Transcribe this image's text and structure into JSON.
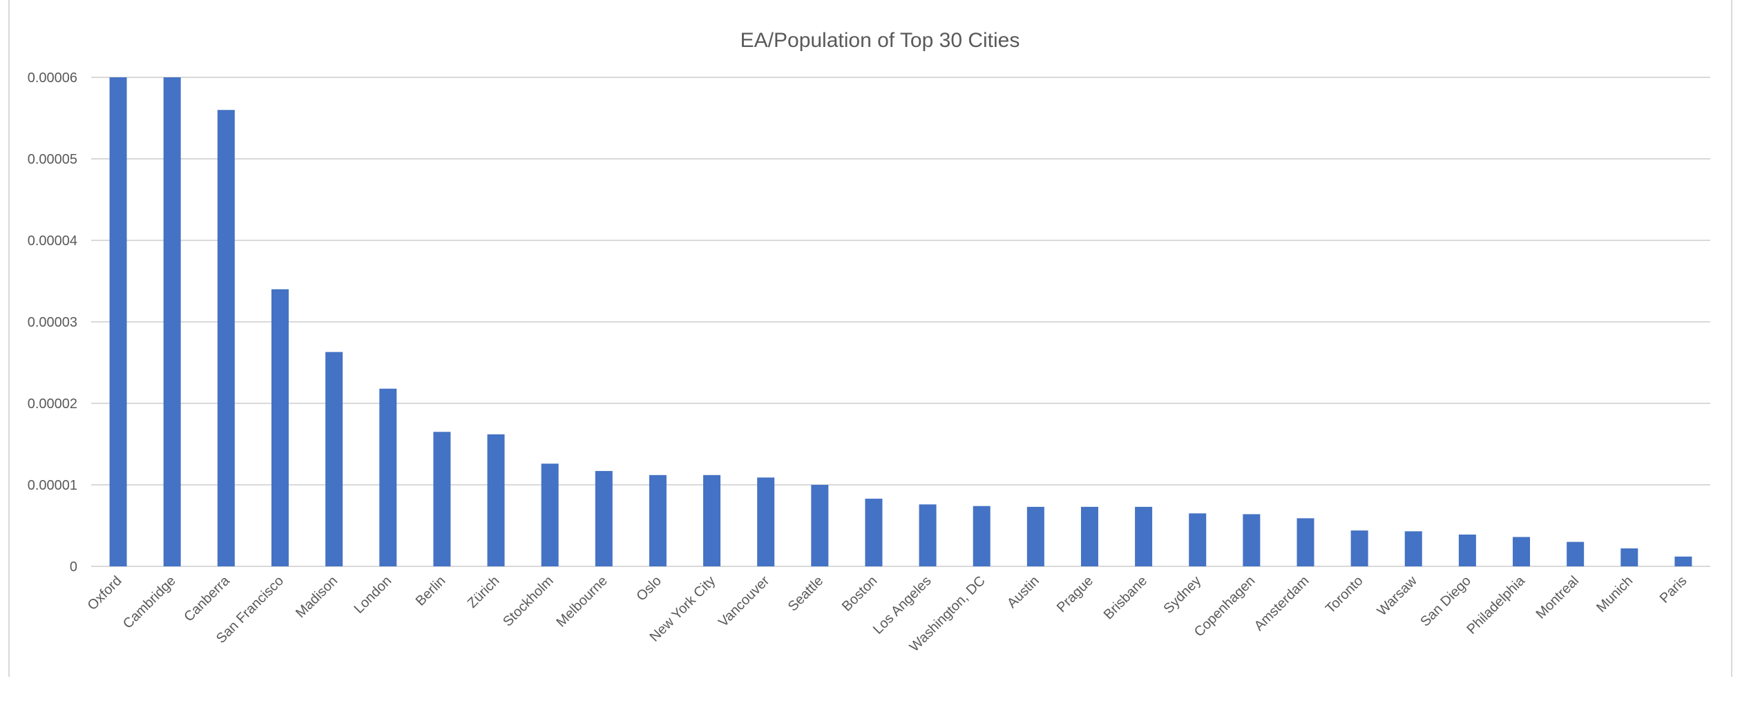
{
  "chart_data": {
    "type": "bar",
    "title": "EA/Population of Top 30 Cities",
    "xlabel": "",
    "ylabel": "",
    "ylim": [
      0,
      6e-05
    ],
    "yticks": [
      "0",
      "0.00001",
      "0.00002",
      "0.00003",
      "0.00004",
      "0.00005",
      "0.00006"
    ],
    "ytick_values": [
      0,
      1e-05,
      2e-05,
      3e-05,
      4e-05,
      5e-05,
      6e-05
    ],
    "grid": true,
    "color": "#4472c4",
    "categories": [
      "Oxford",
      "Cambridge",
      "Canberra",
      "San Francisco",
      "Madison",
      "London",
      "Berlin",
      "Zürich",
      "Stockholm",
      "Melbourne",
      "Oslo",
      "New York City",
      "Vancouver",
      "Seattle",
      "Boston",
      "Los Angeles",
      "Washington, DC",
      "Austin",
      "Prague",
      "Brisbane",
      "Sydney",
      "Copenhagen",
      "Amsterdam",
      "Toronto",
      "Warsaw",
      "San Diego",
      "Philadelphia",
      "Montreal",
      "Munich",
      "Paris"
    ],
    "values": [
      6e-05,
      6e-05,
      5.6e-05,
      3.4e-05,
      2.63e-05,
      2.18e-05,
      1.65e-05,
      1.62e-05,
      1.26e-05,
      1.17e-05,
      1.12e-05,
      1.12e-05,
      1.09e-05,
      1e-05,
      8.3e-06,
      7.6e-06,
      7.4e-06,
      7.3e-06,
      7.3e-06,
      7.3e-06,
      6.5e-06,
      6.4e-06,
      5.9e-06,
      4.4e-06,
      4.3e-06,
      3.9e-06,
      3.6e-06,
      3e-06,
      2.2e-06,
      1.2e-06
    ]
  }
}
